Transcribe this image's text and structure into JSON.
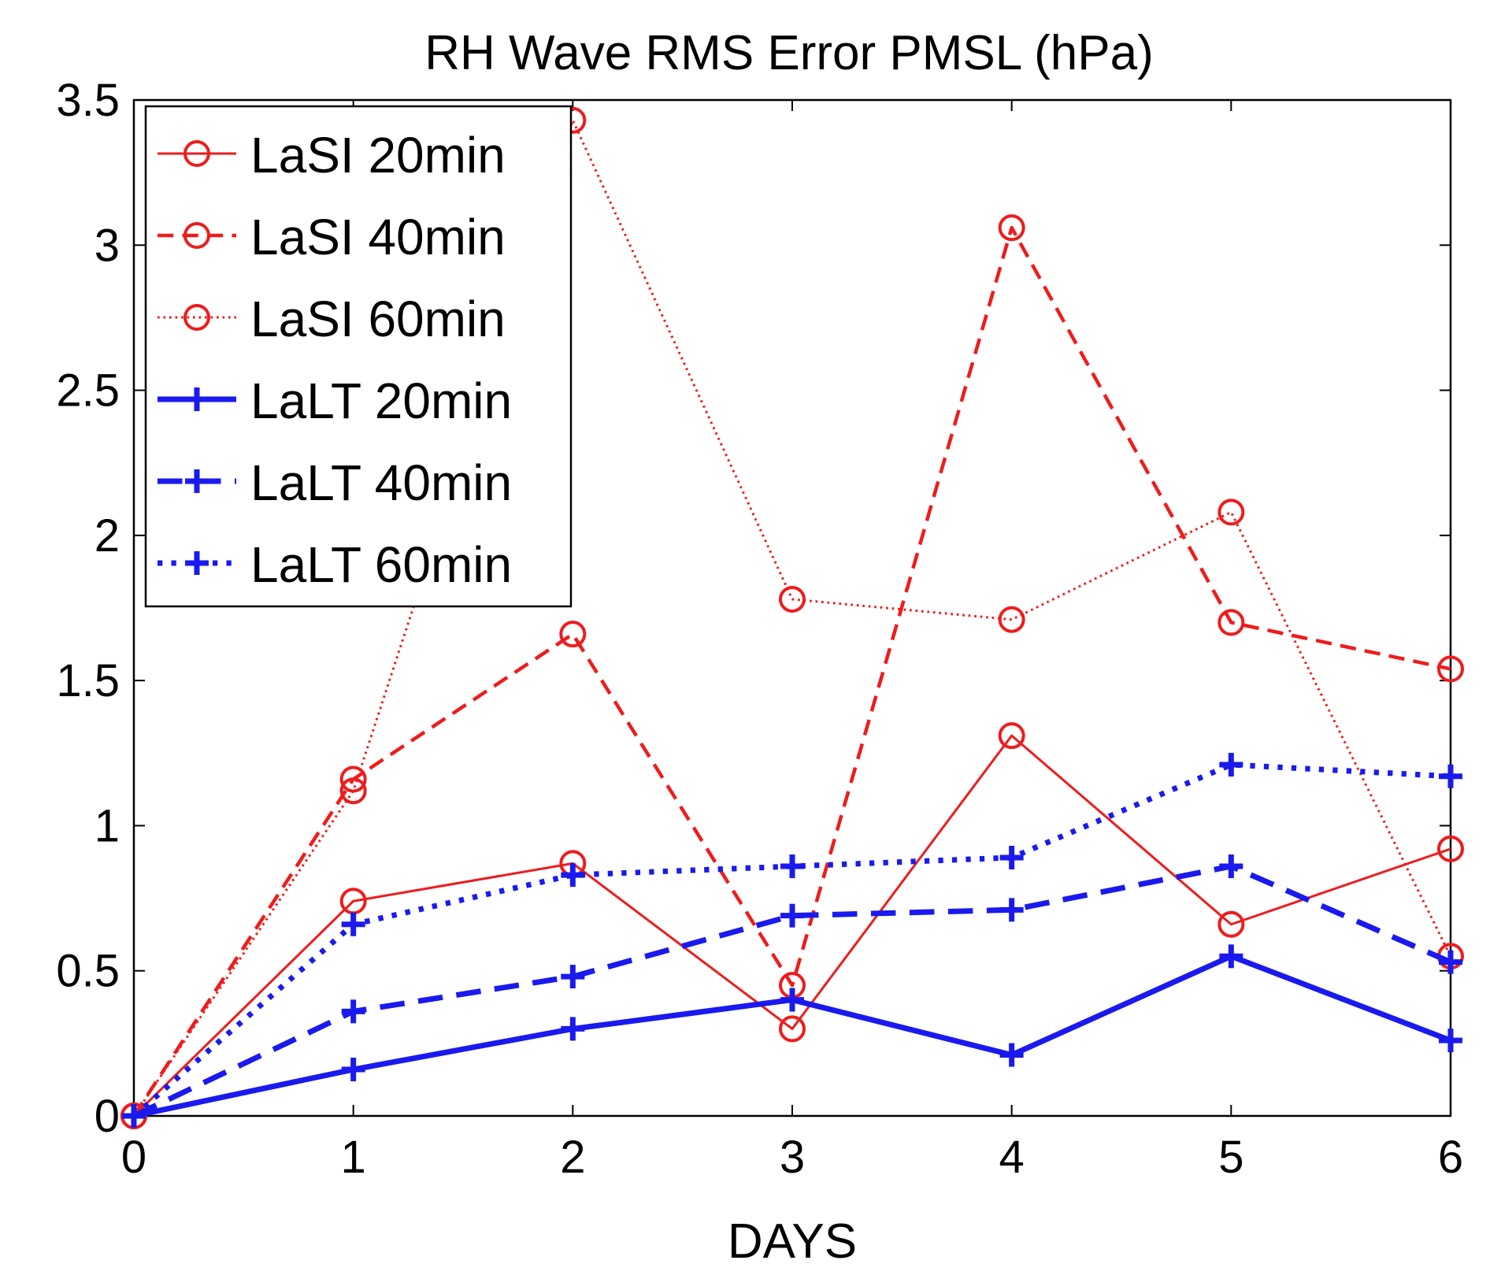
{
  "chart_data": {
    "type": "line",
    "title": "RH Wave RMS Error PMSL (hPa)",
    "xlabel": "DAYS",
    "ylabel": "",
    "xlim": [
      0,
      6
    ],
    "ylim": [
      0,
      3.5
    ],
    "xticks": [
      0,
      1,
      2,
      3,
      4,
      5,
      6
    ],
    "xtick_labels": [
      "0",
      "1",
      "2",
      "3",
      "4",
      "5",
      "6"
    ],
    "yticks": [
      0,
      0.5,
      1,
      1.5,
      2,
      2.5,
      3,
      3.5
    ],
    "ytick_labels": [
      "0",
      "0.5",
      "1",
      "1.5",
      "2",
      "2.5",
      "3",
      "3.5"
    ],
    "grid": false,
    "legend_position": "top-left",
    "x": [
      0,
      1,
      2,
      3,
      4,
      5,
      6
    ],
    "series": [
      {
        "name": "LaSI 20min",
        "color": "#ee1c1c",
        "dash": "solid",
        "marker": "circle",
        "width": "thin",
        "values": [
          0,
          0.74,
          0.87,
          0.3,
          1.31,
          0.66,
          0.92
        ]
      },
      {
        "name": "LaSI 40min",
        "color": "#ee1c1c",
        "dash": "dashed",
        "marker": "circle",
        "width": "medium",
        "values": [
          0,
          1.16,
          1.66,
          0.45,
          3.06,
          1.7,
          1.54
        ]
      },
      {
        "name": "LaSI 60min",
        "color": "#ee1c1c",
        "dash": "dotted",
        "marker": "circle",
        "width": "thin",
        "values": [
          0,
          1.12,
          3.43,
          1.78,
          1.71,
          2.08,
          0.55
        ]
      },
      {
        "name": "LaLT 20min",
        "color": "#1a1aee",
        "dash": "solid",
        "marker": "plus",
        "width": "thick",
        "values": [
          0,
          0.16,
          0.3,
          0.4,
          0.21,
          0.55,
          0.26
        ]
      },
      {
        "name": "LaLT 40min",
        "color": "#1a1aee",
        "dash": "dashed",
        "marker": "plus",
        "width": "thick",
        "values": [
          0,
          0.36,
          0.48,
          0.69,
          0.71,
          0.86,
          0.53
        ]
      },
      {
        "name": "LaLT 60min",
        "color": "#1a1aee",
        "dash": "dotted",
        "marker": "plus",
        "width": "thick",
        "values": [
          0,
          0.66,
          0.83,
          0.86,
          0.89,
          1.21,
          1.17
        ]
      }
    ]
  }
}
